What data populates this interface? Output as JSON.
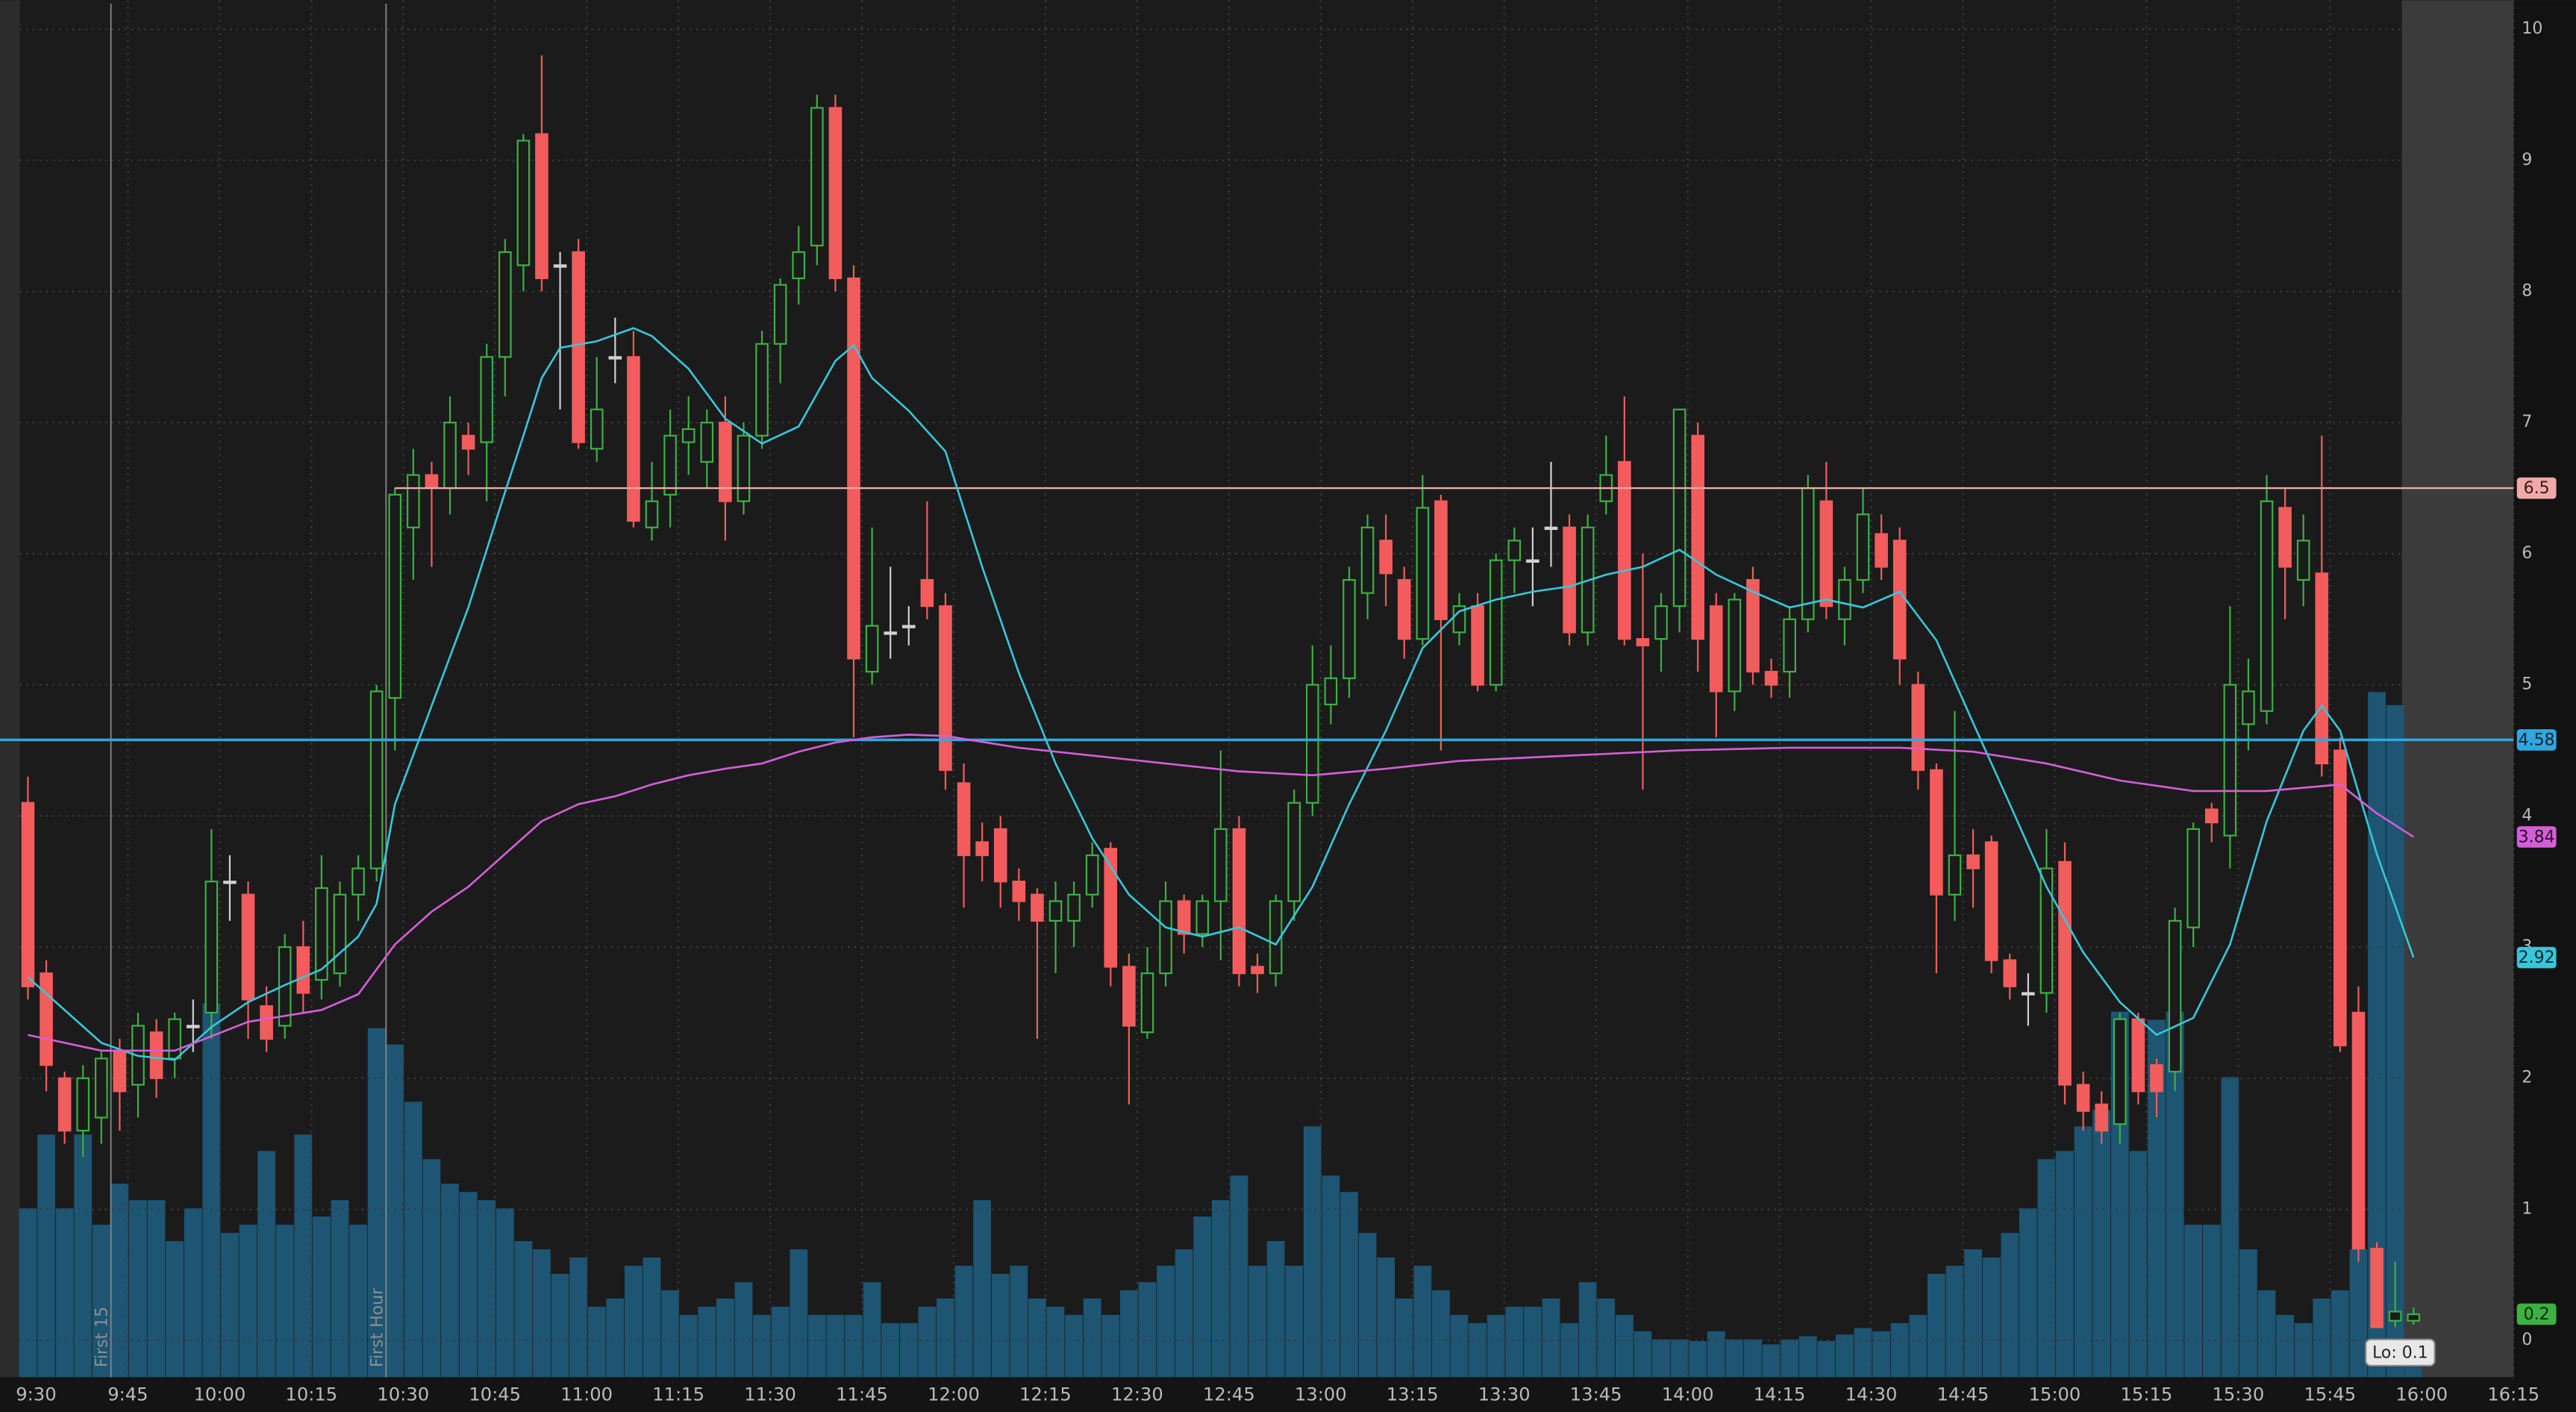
{
  "chart_data": {
    "type": "candlestick",
    "ylim": [
      -0.28,
      10.22
    ],
    "yticks": [
      0,
      1,
      2,
      3,
      4,
      5,
      6,
      7,
      8,
      9,
      10
    ],
    "xticks": [
      "9:30",
      "9:45",
      "10:00",
      "10:15",
      "10:30",
      "10:45",
      "11:00",
      "11:15",
      "11:30",
      "11:45",
      "12:00",
      "12:15",
      "12:30",
      "12:45",
      "13:00",
      "13:15",
      "13:30",
      "13:45",
      "14:00",
      "14:15",
      "14:30",
      "14:45",
      "15:00",
      "15:15",
      "15:30",
      "15:45",
      "16:00",
      "16:15"
    ],
    "grid": true,
    "up_color": "#3cb043",
    "down_color": "#f25c5c",
    "ohlc": [
      [
        4.1,
        4.3,
        2.6,
        2.7
      ],
      [
        2.8,
        2.9,
        1.9,
        2.1
      ],
      [
        2.0,
        2.05,
        1.5,
        1.6
      ],
      [
        1.6,
        2.1,
        1.4,
        2.0
      ],
      [
        1.7,
        2.2,
        1.5,
        2.15
      ],
      [
        2.2,
        2.3,
        1.6,
        1.9
      ],
      [
        1.95,
        2.5,
        1.7,
        2.4
      ],
      [
        2.35,
        2.45,
        1.85,
        2.0
      ],
      [
        2.15,
        2.5,
        2.0,
        2.45
      ],
      [
        2.4,
        2.6,
        2.2,
        2.4
      ],
      [
        2.5,
        3.9,
        2.3,
        3.5
      ],
      [
        3.5,
        3.7,
        3.2,
        3.5
      ],
      [
        3.4,
        3.5,
        2.3,
        2.6
      ],
      [
        2.55,
        2.7,
        2.2,
        2.3
      ],
      [
        2.4,
        3.1,
        2.3,
        3.0
      ],
      [
        3.0,
        3.2,
        2.5,
        2.65
      ],
      [
        2.75,
        3.7,
        2.6,
        3.45
      ],
      [
        2.8,
        3.5,
        2.7,
        3.4
      ],
      [
        3.4,
        3.7,
        3.2,
        3.6
      ],
      [
        3.6,
        5.0,
        3.5,
        4.95
      ],
      [
        4.9,
        6.5,
        4.5,
        6.45
      ],
      [
        6.2,
        6.8,
        5.8,
        6.6
      ],
      [
        6.6,
        6.7,
        5.9,
        6.5
      ],
      [
        6.5,
        7.2,
        6.3,
        7.0
      ],
      [
        6.9,
        7.0,
        6.6,
        6.8
      ],
      [
        6.85,
        7.6,
        6.4,
        7.5
      ],
      [
        7.5,
        8.4,
        7.2,
        8.3
      ],
      [
        8.2,
        9.2,
        8.0,
        9.15
      ],
      [
        9.2,
        9.8,
        8.0,
        8.1
      ],
      [
        8.2,
        8.3,
        7.1,
        8.2
      ],
      [
        8.3,
        8.4,
        6.8,
        6.85
      ],
      [
        6.8,
        7.5,
        6.7,
        7.1
      ],
      [
        7.5,
        7.8,
        7.3,
        7.5
      ],
      [
        7.5,
        7.7,
        6.2,
        6.25
      ],
      [
        6.2,
        6.7,
        6.1,
        6.4
      ],
      [
        6.45,
        7.1,
        6.2,
        6.9
      ],
      [
        6.85,
        7.2,
        6.6,
        6.95
      ],
      [
        6.7,
        7.1,
        6.5,
        7.0
      ],
      [
        7.0,
        7.2,
        6.1,
        6.4
      ],
      [
        6.4,
        7.0,
        6.3,
        6.9
      ],
      [
        6.9,
        7.7,
        6.8,
        7.6
      ],
      [
        7.6,
        8.1,
        7.3,
        8.05
      ],
      [
        8.1,
        8.5,
        7.9,
        8.3
      ],
      [
        8.35,
        9.5,
        8.2,
        9.4
      ],
      [
        9.4,
        9.5,
        8.0,
        8.1
      ],
      [
        8.1,
        8.2,
        4.6,
        5.2
      ],
      [
        5.1,
        6.2,
        5.0,
        5.45
      ],
      [
        5.4,
        5.9,
        5.2,
        5.4
      ],
      [
        5.45,
        5.6,
        5.3,
        5.45
      ],
      [
        5.8,
        6.4,
        5.5,
        5.6
      ],
      [
        5.6,
        5.7,
        4.2,
        4.35
      ],
      [
        4.25,
        4.4,
        3.3,
        3.7
      ],
      [
        3.8,
        3.95,
        3.5,
        3.7
      ],
      [
        3.9,
        4.0,
        3.3,
        3.5
      ],
      [
        3.5,
        3.6,
        3.2,
        3.35
      ],
      [
        3.4,
        3.45,
        2.3,
        3.2
      ],
      [
        3.2,
        3.5,
        2.8,
        3.35
      ],
      [
        3.2,
        3.5,
        3.0,
        3.4
      ],
      [
        3.4,
        3.8,
        3.3,
        3.7
      ],
      [
        3.75,
        3.8,
        2.7,
        2.85
      ],
      [
        2.85,
        2.95,
        1.8,
        2.4
      ],
      [
        2.35,
        3.0,
        2.3,
        2.8
      ],
      [
        2.8,
        3.5,
        2.7,
        3.35
      ],
      [
        3.35,
        3.4,
        2.95,
        3.1
      ],
      [
        3.1,
        3.4,
        3.0,
        3.35
      ],
      [
        3.35,
        4.5,
        2.9,
        3.9
      ],
      [
        3.9,
        4.0,
        2.7,
        2.8
      ],
      [
        2.85,
        2.95,
        2.65,
        2.8
      ],
      [
        2.8,
        3.4,
        2.7,
        3.35
      ],
      [
        3.35,
        4.2,
        3.2,
        4.1
      ],
      [
        4.1,
        5.3,
        4.0,
        5.0
      ],
      [
        4.85,
        5.3,
        4.7,
        5.05
      ],
      [
        5.05,
        5.9,
        4.9,
        5.8
      ],
      [
        5.7,
        6.3,
        5.5,
        6.2
      ],
      [
        6.1,
        6.3,
        5.6,
        5.85
      ],
      [
        5.8,
        5.9,
        5.2,
        5.35
      ],
      [
        5.35,
        6.6,
        5.3,
        6.35
      ],
      [
        6.4,
        6.45,
        4.5,
        5.5
      ],
      [
        5.4,
        5.7,
        5.3,
        5.6
      ],
      [
        5.6,
        5.7,
        4.95,
        5.0
      ],
      [
        5.0,
        6.0,
        4.95,
        5.95
      ],
      [
        5.95,
        6.2,
        5.7,
        6.1
      ],
      [
        5.95,
        6.2,
        5.6,
        5.95
      ],
      [
        6.2,
        6.7,
        5.9,
        6.2
      ],
      [
        6.2,
        6.3,
        5.3,
        5.4
      ],
      [
        5.4,
        6.3,
        5.3,
        6.2
      ],
      [
        6.4,
        6.9,
        6.3,
        6.6
      ],
      [
        6.7,
        7.2,
        5.3,
        5.35
      ],
      [
        5.35,
        6.0,
        4.2,
        5.3
      ],
      [
        5.35,
        5.7,
        5.1,
        5.6
      ],
      [
        5.6,
        7.1,
        5.4,
        7.1
      ],
      [
        6.9,
        7.0,
        5.1,
        5.35
      ],
      [
        5.6,
        5.7,
        4.6,
        4.95
      ],
      [
        4.95,
        5.7,
        4.8,
        5.65
      ],
      [
        5.8,
        5.9,
        5.0,
        5.1
      ],
      [
        5.1,
        5.2,
        4.9,
        5.0
      ],
      [
        5.1,
        5.6,
        4.9,
        5.5
      ],
      [
        5.5,
        6.6,
        5.4,
        6.5
      ],
      [
        6.4,
        6.7,
        5.5,
        5.6
      ],
      [
        5.5,
        5.9,
        5.3,
        5.8
      ],
      [
        5.8,
        6.5,
        5.7,
        6.3
      ],
      [
        6.15,
        6.3,
        5.8,
        5.9
      ],
      [
        6.1,
        6.2,
        5.0,
        5.2
      ],
      [
        5.0,
        5.1,
        4.2,
        4.35
      ],
      [
        4.35,
        4.4,
        2.8,
        3.4
      ],
      [
        3.4,
        4.8,
        3.2,
        3.7
      ],
      [
        3.7,
        3.9,
        3.3,
        3.6
      ],
      [
        3.8,
        3.85,
        2.8,
        2.9
      ],
      [
        2.9,
        2.95,
        2.6,
        2.7
      ],
      [
        2.65,
        2.8,
        2.4,
        2.65
      ],
      [
        2.65,
        3.9,
        2.5,
        3.6
      ],
      [
        3.65,
        3.8,
        1.8,
        1.95
      ],
      [
        1.95,
        2.05,
        1.6,
        1.75
      ],
      [
        1.8,
        1.9,
        1.5,
        1.6
      ],
      [
        1.65,
        2.5,
        1.5,
        2.45
      ],
      [
        2.45,
        2.5,
        1.8,
        1.9
      ],
      [
        2.1,
        2.15,
        1.7,
        1.9
      ],
      [
        2.05,
        3.3,
        1.9,
        3.2
      ],
      [
        3.15,
        3.95,
        3.0,
        3.9
      ],
      [
        4.05,
        4.1,
        3.8,
        3.95
      ],
      [
        3.85,
        5.6,
        3.6,
        5.0
      ],
      [
        4.7,
        5.2,
        4.5,
        4.95
      ],
      [
        4.8,
        6.6,
        4.7,
        6.4
      ],
      [
        6.35,
        6.5,
        5.5,
        5.9
      ],
      [
        5.8,
        6.3,
        5.6,
        6.1
      ],
      [
        5.85,
        6.9,
        4.3,
        4.4
      ],
      [
        4.5,
        4.6,
        2.2,
        2.25
      ],
      [
        2.5,
        2.7,
        0.6,
        0.7
      ],
      [
        0.7,
        0.75,
        0.1,
        0.1
      ],
      [
        0.15,
        0.6,
        0.1,
        0.22
      ],
      [
        0.15,
        0.25,
        0.12,
        0.2
      ]
    ],
    "vlim": [
      0,
      840
    ],
    "volume_color": "#1d5573",
    "volume": [
      103,
      148,
      103,
      148,
      93,
      118,
      108,
      108,
      83,
      103,
      228,
      88,
      93,
      138,
      93,
      148,
      98,
      108,
      93,
      213,
      203,
      168,
      133,
      118,
      113,
      108,
      103,
      83,
      78,
      63,
      73,
      43,
      48,
      68,
      73,
      53,
      38,
      43,
      48,
      58,
      38,
      43,
      78,
      38,
      38,
      38,
      58,
      33,
      33,
      43,
      48,
      68,
      108,
      63,
      68,
      48,
      43,
      38,
      48,
      38,
      53,
      58,
      68,
      78,
      98,
      108,
      123,
      68,
      83,
      68,
      153,
      123,
      113,
      88,
      73,
      48,
      68,
      53,
      38,
      33,
      38,
      43,
      43,
      48,
      33,
      58,
      48,
      38,
      28,
      23,
      23,
      22,
      28,
      23,
      23,
      20,
      23,
      25,
      22,
      26,
      30,
      28,
      33,
      38,
      63,
      68,
      78,
      73,
      88,
      103,
      133,
      138,
      153,
      163,
      223,
      138,
      218,
      223,
      93,
      93,
      183,
      78,
      53,
      38,
      33,
      48,
      53,
      78,
      418,
      410,
      10
    ],
    "series": [
      {
        "color": "#38c6d9",
        "x": [
          0,
          2,
          4,
          6,
          8,
          10,
          12,
          14,
          16,
          18,
          19,
          20,
          22,
          24,
          26,
          27,
          28,
          29,
          31,
          33,
          34,
          36,
          38,
          40,
          42,
          44,
          45,
          46,
          48,
          50,
          52,
          54,
          56,
          58,
          60,
          62,
          64,
          66,
          68,
          70,
          72,
          74,
          76,
          78,
          80,
          82,
          84,
          86,
          88,
          90,
          92,
          94,
          96,
          98,
          100,
          102,
          104,
          106,
          108,
          110,
          112,
          114,
          116,
          118,
          120,
          122,
          124,
          125,
          126,
          128,
          130
        ],
        "values": [
          2.77,
          2.52,
          2.27,
          2.17,
          2.14,
          2.39,
          2.58,
          2.71,
          2.83,
          3.08,
          3.33,
          4.09,
          4.84,
          5.59,
          6.47,
          6.9,
          7.34,
          7.57,
          7.62,
          7.72,
          7.66,
          7.41,
          7.03,
          6.84,
          6.97,
          7.47,
          7.59,
          7.34,
          7.09,
          6.78,
          5.9,
          5.09,
          4.4,
          3.83,
          3.4,
          3.15,
          3.08,
          3.15,
          3.02,
          3.46,
          4.09,
          4.65,
          5.28,
          5.56,
          5.65,
          5.71,
          5.75,
          5.84,
          5.9,
          6.03,
          5.84,
          5.71,
          5.59,
          5.65,
          5.59,
          5.71,
          5.34,
          4.71,
          4.09,
          3.46,
          2.96,
          2.58,
          2.33,
          2.46,
          3.02,
          3.96,
          4.65,
          4.84,
          4.65,
          3.71,
          2.92
        ]
      },
      {
        "color": "#d45ed8",
        "x": [
          0,
          4,
          8,
          12,
          16,
          18,
          20,
          22,
          24,
          26,
          28,
          30,
          32,
          34,
          36,
          38,
          40,
          42,
          44,
          46,
          48,
          50,
          54,
          58,
          62,
          66,
          70,
          74,
          78,
          84,
          90,
          96,
          102,
          106,
          110,
          114,
          118,
          122,
          126,
          128,
          130
        ],
        "values": [
          2.33,
          2.21,
          2.21,
          2.43,
          2.52,
          2.64,
          3.02,
          3.27,
          3.46,
          3.71,
          3.96,
          4.09,
          4.15,
          4.24,
          4.31,
          4.36,
          4.4,
          4.49,
          4.56,
          4.6,
          4.62,
          4.61,
          4.52,
          4.46,
          4.4,
          4.34,
          4.31,
          4.36,
          4.42,
          4.46,
          4.5,
          4.52,
          4.52,
          4.49,
          4.4,
          4.27,
          4.19,
          4.19,
          4.24,
          4.02,
          3.84
        ]
      }
    ],
    "hlines": [
      {
        "value": 6.5,
        "color": "#f0a8a8"
      },
      {
        "value": 4.58,
        "color": "#2fa8e0"
      }
    ],
    "markers": [
      {
        "label": "First 15"
      },
      {
        "label": "First Hour"
      }
    ],
    "low_label": "Lo: 0.1"
  }
}
